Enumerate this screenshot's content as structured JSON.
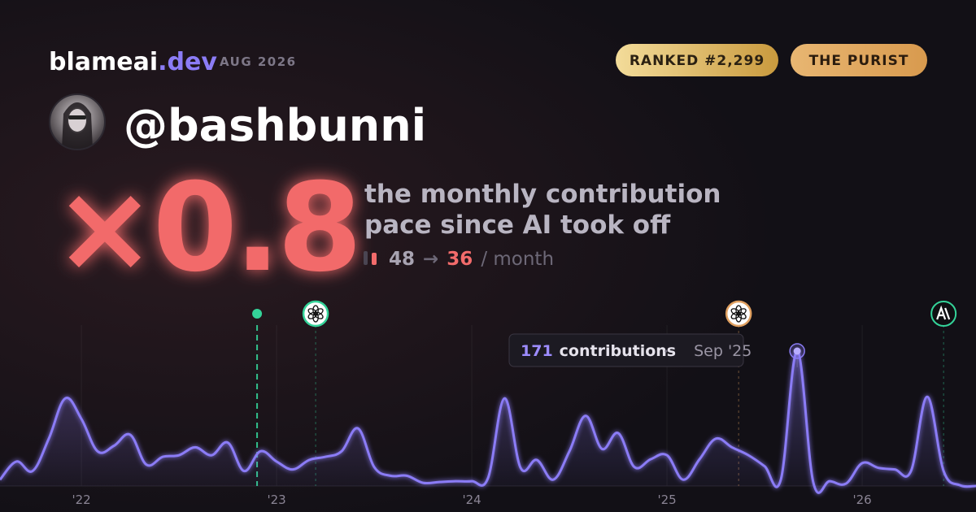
{
  "brand": {
    "name": "blameai",
    "tld": ".dev",
    "date": "AUG 2026"
  },
  "badges": [
    "RANKED #2,299",
    "THE PURIST"
  ],
  "handle": "@bashbunni",
  "multiplier": "×0.8",
  "subtitle": [
    "the monthly contribution",
    "pace since AI took off"
  ],
  "pace": {
    "before": 48,
    "arrow": "→",
    "after": 36,
    "unit": "/ month"
  },
  "chart_data": {
    "type": "line",
    "x": [
      2021.583,
      2021.667,
      2021.75,
      2021.833,
      2021.917,
      2022,
      2022.083,
      2022.167,
      2022.25,
      2022.333,
      2022.417,
      2022.5,
      2022.583,
      2022.667,
      2022.75,
      2022.833,
      2022.917,
      2023,
      2023.083,
      2023.167,
      2023.25,
      2023.333,
      2023.417,
      2023.5,
      2023.583,
      2023.667,
      2023.75,
      2023.833,
      2023.917,
      2024,
      2024.083,
      2024.167,
      2024.25,
      2024.333,
      2024.417,
      2024.5,
      2024.583,
      2024.667,
      2024.75,
      2024.833,
      2024.917,
      2025,
      2025.083,
      2025.167,
      2025.25,
      2025.333,
      2025.417,
      2025.5,
      2025.583,
      2025.667,
      2025.75,
      2025.833,
      2025.917,
      2026,
      2026.083,
      2026.167,
      2026.25,
      2026.333,
      2026.417,
      2026.5,
      2026.583
    ],
    "series": [
      {
        "name": "contributions",
        "color": "#8b7cf6",
        "values": [
          8,
          31,
          19,
          60,
          111,
          85,
          44,
          51,
          65,
          27,
          37,
          39,
          49,
          39,
          55,
          19,
          44,
          31,
          21,
          33,
          37,
          44,
          73,
          24,
          13,
          13,
          4,
          5,
          6,
          6,
          10,
          111,
          23,
          33,
          8,
          44,
          89,
          47,
          67,
          24,
          34,
          39,
          8,
          34,
          60,
          49,
          39,
          25,
          8,
          171,
          4,
          6,
          3,
          29,
          23,
          21,
          19,
          113,
          19,
          1,
          0
        ]
      }
    ],
    "xlim": [
      2021.583,
      2026.583
    ],
    "xticks": [
      {
        "value": 2022,
        "label": "'22"
      },
      {
        "value": 2023,
        "label": "'23"
      },
      {
        "value": 2024,
        "label": "'24"
      },
      {
        "value": 2025,
        "label": "'25"
      },
      {
        "value": 2026,
        "label": "'26"
      }
    ],
    "ylim": [
      0,
      171
    ],
    "grid": true,
    "events": [
      {
        "x": 2022.9,
        "color": "#34d399"
      },
      {
        "x": 2023.2,
        "color": "#34d399"
      },
      {
        "x": 2025.367,
        "color": "#e0a060"
      },
      {
        "x": 2026.417,
        "color": "#34d399"
      }
    ],
    "tooltip": {
      "label": "contributions",
      "date": "Sep '25"
    }
  }
}
